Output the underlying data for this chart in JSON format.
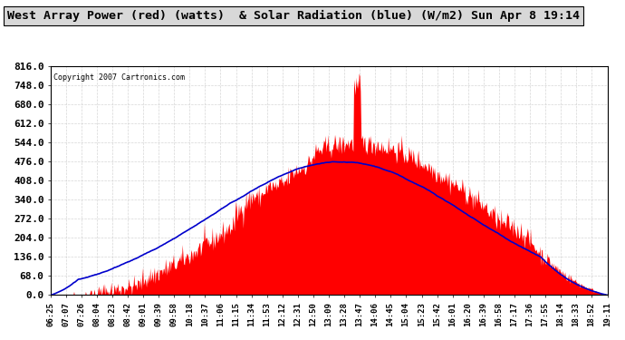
{
  "title": "West Array Power (red) (watts)  & Solar Radiation (blue) (W/m2) Sun Apr 8 19:14",
  "copyright": "Copyright 2007 Cartronics.com",
  "y_min": 0.0,
  "y_max": 816.0,
  "y_ticks": [
    0.0,
    68.0,
    136.0,
    204.0,
    272.0,
    340.0,
    408.0,
    476.0,
    544.0,
    612.0,
    680.0,
    748.0,
    816.0
  ],
  "x_labels": [
    "06:25",
    "07:07",
    "07:26",
    "08:04",
    "08:23",
    "08:42",
    "09:01",
    "09:39",
    "09:58",
    "10:18",
    "10:37",
    "11:06",
    "11:15",
    "11:34",
    "11:53",
    "12:12",
    "12:31",
    "12:50",
    "13:09",
    "13:28",
    "13:47",
    "14:06",
    "14:45",
    "15:04",
    "15:23",
    "15:42",
    "16:01",
    "16:20",
    "16:39",
    "16:58",
    "17:17",
    "17:36",
    "17:55",
    "18:14",
    "18:33",
    "18:52",
    "19:11"
  ],
  "bg_color": "#ffffff",
  "plot_bg_color": "#ffffff",
  "grid_color": "#cccccc",
  "red_color": "#ff0000",
  "blue_color": "#0000cc",
  "title_bg": "#d0d0d0"
}
